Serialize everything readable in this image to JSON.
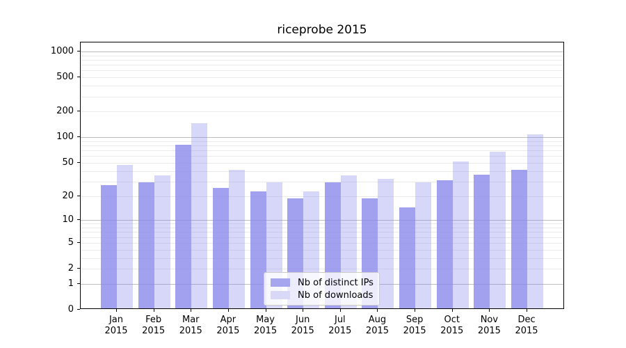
{
  "figure": {
    "title": "riceprobe 2015"
  },
  "chart_data": {
    "type": "bar",
    "title": "riceprobe 2015",
    "categories": [
      "Jan 2015",
      "Feb 2015",
      "Mar 2015",
      "Apr 2015",
      "May 2015",
      "Jun 2015",
      "Jul 2015",
      "Aug 2015",
      "Sep 2015",
      "Oct 2015",
      "Nov 2015",
      "Dec 2015"
    ],
    "series": [
      {
        "name": "Nb of distinct IPs",
        "color": "rgba(134,134,236,0.78)",
        "legend_swatch_color": "#a6a6ef",
        "values": [
          26,
          28,
          78,
          24,
          22,
          18,
          28,
          18,
          14,
          30,
          35,
          40
        ]
      },
      {
        "name": "Nb of downloads",
        "color": "rgba(134,134,236,0.33)",
        "legend_swatch_color": "#d9d9f7",
        "values": [
          45,
          34,
          140,
          40,
          28,
          22,
          34,
          31,
          28,
          50,
          65,
          105
        ]
      }
    ],
    "xlabel": "",
    "ylabel": "",
    "yscale": "symlog (y ~ log10(1+v))",
    "ylim": [
      0,
      1273
    ],
    "yticks": [
      0,
      1,
      2,
      5,
      10,
      20,
      50,
      100,
      200,
      500,
      1000
    ],
    "grid": {
      "major": [
        1,
        10,
        100,
        1000
      ],
      "minor": [
        2,
        3,
        4,
        5,
        6,
        7,
        8,
        9,
        20,
        30,
        40,
        50,
        60,
        70,
        80,
        90,
        200,
        300,
        400,
        500,
        600,
        700,
        800,
        900
      ],
      "major_color": "#bdbdbd",
      "minor_color": "#eaeaea"
    },
    "legend": {
      "position": "inside-bottom-center",
      "entries": [
        "Nb of distinct IPs",
        "Nb of downloads"
      ]
    }
  }
}
